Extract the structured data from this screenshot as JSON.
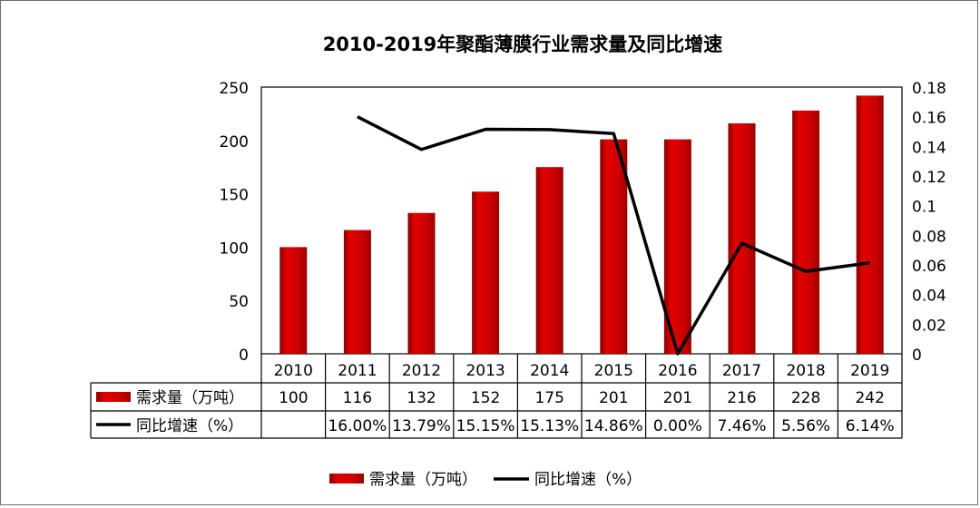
{
  "chart_data": {
    "type": "bar",
    "title": "2010-2019年聚酯薄膜行业需求量及同比增速",
    "categories": [
      "2010",
      "2011",
      "2012",
      "2013",
      "2014",
      "2015",
      "2016",
      "2017",
      "2018",
      "2019"
    ],
    "series": [
      {
        "name": "需求量（万吨）",
        "type": "bar",
        "axis": "left",
        "color": "#cc0000",
        "values": [
          100,
          116,
          132,
          152,
          175,
          201,
          201,
          216,
          228,
          242
        ],
        "table_labels": [
          "100",
          "116",
          "132",
          "152",
          "175",
          "201",
          "201",
          "216",
          "228",
          "242"
        ]
      },
      {
        "name": "同比增速（%）",
        "type": "line",
        "axis": "right",
        "color": "#000000",
        "values": [
          null,
          0.16,
          0.1379,
          0.1515,
          0.1513,
          0.1486,
          0.0,
          0.0746,
          0.0556,
          0.0614
        ],
        "table_labels": [
          "",
          "16.00%",
          "13.79%",
          "15.15%",
          "15.13%",
          "14.86%",
          "0.00%",
          "7.46%",
          "5.56%",
          "6.14%"
        ]
      }
    ],
    "y_left": {
      "ylim": [
        0,
        250
      ],
      "ticks": [
        "0",
        "50",
        "100",
        "150",
        "200",
        "250"
      ]
    },
    "y_right": {
      "ylim": [
        0,
        0.18
      ],
      "ticks": [
        "0",
        "0.02",
        "0.04",
        "0.06",
        "0.08",
        "0.1",
        "0.12",
        "0.14",
        "0.16",
        "0.18"
      ]
    },
    "grid": false,
    "legend": "bottom",
    "data_table": true
  }
}
